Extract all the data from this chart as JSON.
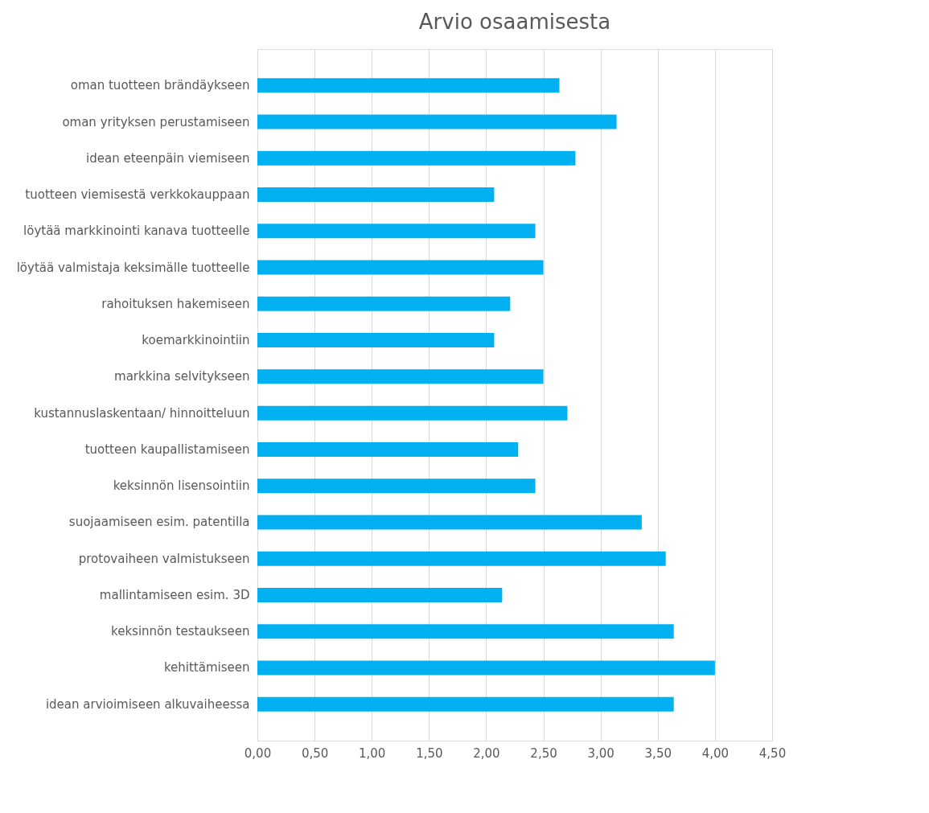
{
  "chart_data": {
    "type": "bar",
    "orientation": "horizontal",
    "title": "Arvio osaamisesta",
    "categories": [
      "oman tuotteen brändäykseen",
      "oman yrityksen perustamiseen",
      "idean eteenpäin viemiseen",
      "tuotteen viemisestä verkkokauppaan",
      "löytää markkinointi kanava tuotteelle",
      "löytää valmistaja keksimälle tuotteelle",
      "rahoituksen hakemiseen",
      "koemarkkinointiin",
      "markkina selvitykseen",
      "kustannuslaskentaan/ hinnoitteluun",
      "tuotteen kaupallistamiseen",
      "keksinnön lisensointiin",
      "suojaamiseen esim. patentilla",
      "protovaiheen valmistukseen",
      "mallintamiseen esim. 3D",
      "keksinnön testaukseen",
      "kehittämiseen",
      "idean arvioimiseen alkuvaiheessa"
    ],
    "values": [
      2.64,
      3.14,
      2.78,
      2.07,
      2.43,
      2.5,
      2.21,
      2.07,
      2.5,
      2.71,
      2.28,
      2.43,
      3.36,
      3.57,
      2.14,
      3.64,
      4.0,
      3.64
    ],
    "color": "#00b0f0",
    "xlim": [
      0,
      4.5
    ],
    "xticks": [
      {
        "value": 0,
        "label": "0,00"
      },
      {
        "value": 0.5,
        "label": "0,50"
      },
      {
        "value": 1,
        "label": "1,00"
      },
      {
        "value": 1.5,
        "label": "1,50"
      },
      {
        "value": 2,
        "label": "2,00"
      },
      {
        "value": 2.5,
        "label": "2,50"
      },
      {
        "value": 3,
        "label": "3,00"
      },
      {
        "value": 3.5,
        "label": "3,50"
      },
      {
        "value": 4,
        "label": "4,00"
      },
      {
        "value": 4.5,
        "label": "4,50"
      }
    ],
    "grid": "x"
  }
}
